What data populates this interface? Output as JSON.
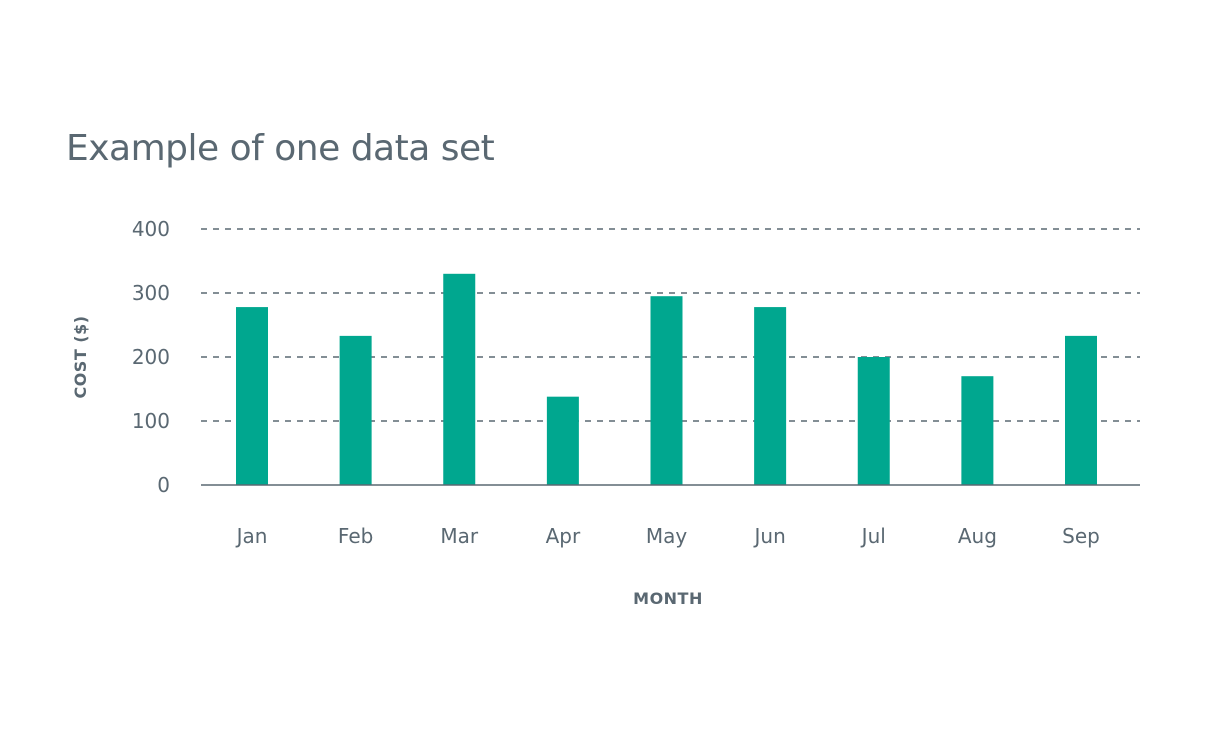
{
  "chart_data": {
    "type": "bar",
    "title": "Example of one data set",
    "xlabel": "MONTH",
    "ylabel": "COST ($)",
    "categories": [
      "Jan",
      "Feb",
      "Mar",
      "Apr",
      "May",
      "Jun",
      "Jul",
      "Aug",
      "Sep"
    ],
    "values": [
      278,
      233,
      330,
      138,
      295,
      278,
      200,
      170,
      233
    ],
    "ylim": [
      0,
      400
    ],
    "yticks": [
      "0",
      "100",
      "200",
      "300",
      "400"
    ],
    "grid": true,
    "bar_color": "#00a78f",
    "grid_color": "#5a6872",
    "text_color": "#5a6872"
  }
}
